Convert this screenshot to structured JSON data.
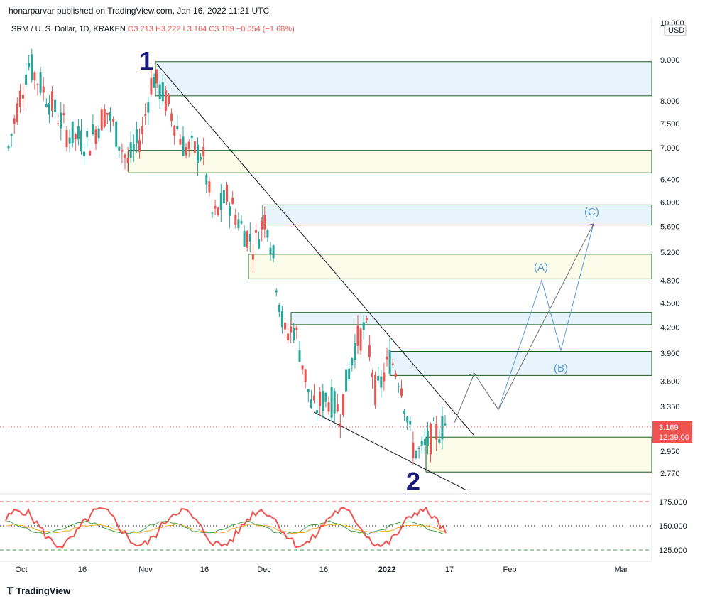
{
  "header": {
    "publisher": "honarparvar published on TradingView.com, Jan 16, 2022 11:21 UTC",
    "symbol": "SRM / U. S. Dollar, 1D, KRAKEN",
    "open": "O3.213",
    "high": "H3.222",
    "low": "L3.164",
    "close": "C3.169",
    "change": "−0.054 (−1.68%)",
    "currency": "USD"
  },
  "brand": "TradingView",
  "price_axis": {
    "top_label": "10.000",
    "ticks": [
      "9.000",
      "8.000",
      "7.500",
      "7.000",
      "6.400",
      "6.000",
      "5.600",
      "5.200",
      "4.800",
      "4.500",
      "4.200",
      "3.900",
      "3.600",
      "3.350",
      "2.950",
      "2.770"
    ],
    "last_price": "3.169",
    "countdown": "12:39:00"
  },
  "indicator_axis": [
    "175.000",
    "150.000",
    "125.000"
  ],
  "time_axis": [
    "Oct",
    "16",
    "Nov",
    "16",
    "Dec",
    "16",
    "2022",
    "17",
    "Feb",
    "Mar"
  ],
  "wave_labels": {
    "one": "1",
    "two": "2",
    "a": "(A)",
    "b": "(B)",
    "c": "(C)"
  },
  "colors": {
    "up": "#26a69a",
    "down": "#ef5350",
    "wave_number": "#1a1a7a",
    "projection": "#5b9bd5",
    "zone_border": "#1b5e20",
    "zone_blue": "#e8f4fb",
    "zone_yellow": "#fbfbea",
    "rsi_line": "#ef5350",
    "ma_orange": "#f5a623",
    "ma_green": "#43a047"
  },
  "chart_data": {
    "type": "candlestick",
    "symbol": "SRM / U. S. Dollar",
    "interval": "1D",
    "ylim": [
      2.7,
      10.0
    ],
    "last_close": 3.169,
    "zones": [
      {
        "top": 8.95,
        "bottom": 8.12,
        "fill": "blue"
      },
      {
        "top": 6.95,
        "bottom": 6.52,
        "fill": "yellow"
      },
      {
        "top": 5.95,
        "bottom": 5.62,
        "fill": "blue"
      },
      {
        "top": 5.17,
        "bottom": 4.82,
        "fill": "yellow"
      },
      {
        "top": 4.38,
        "bottom": 4.23,
        "fill": "blue"
      },
      {
        "top": 3.92,
        "bottom": 3.66,
        "fill": "blue"
      },
      {
        "top": 3.07,
        "bottom": 2.78,
        "fill": "yellow"
      }
    ],
    "projection_path": [
      {
        "t": "Jan 18",
        "price": 3.2
      },
      {
        "t": "Jan 20",
        "price": 3.68
      },
      {
        "t": "Jan 23",
        "price": 3.32
      },
      {
        "t": "Jan 31",
        "price": 4.8
      },
      {
        "t": "Feb 4",
        "price": 3.93
      },
      {
        "t": "Feb 15",
        "price": 5.64
      }
    ],
    "indicator": {
      "levels": [
        175,
        150,
        125
      ]
    }
  }
}
